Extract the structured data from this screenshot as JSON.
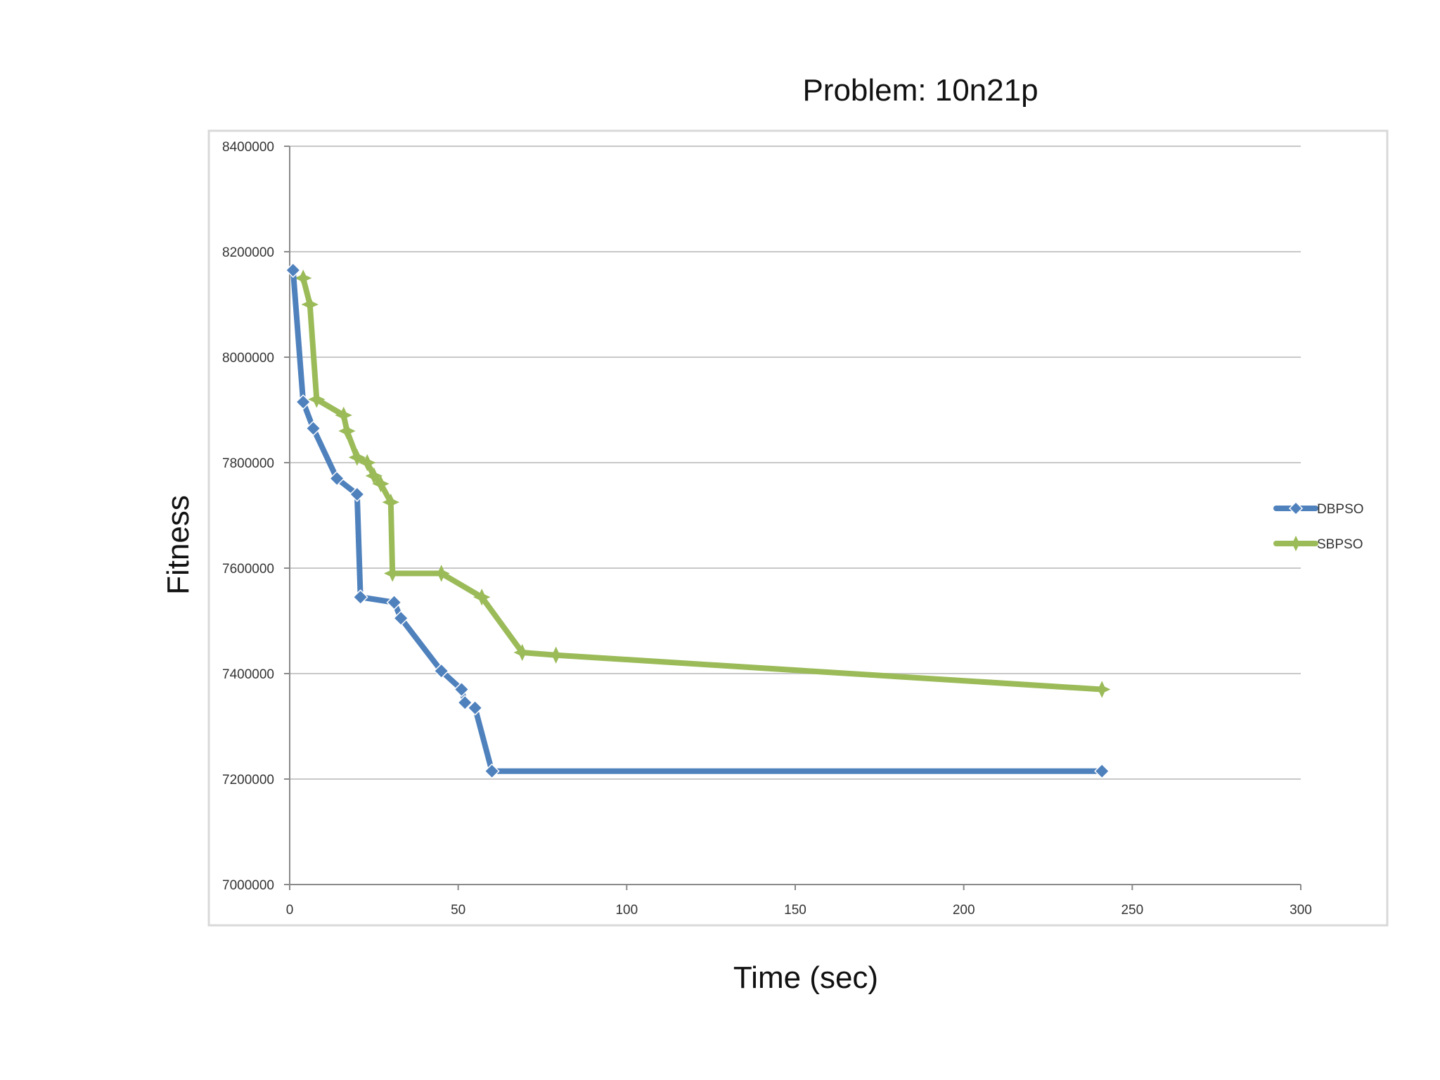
{
  "chart_data": {
    "type": "line",
    "title": "Problem: 10n21p",
    "xlabel": "Time (sec)",
    "ylabel": "Fitness",
    "xlim": [
      0,
      300
    ],
    "ylim": [
      7000000,
      8400000
    ],
    "xticks": [
      "0",
      "50",
      "100",
      "150",
      "200",
      "250",
      "300"
    ],
    "yticks": [
      "7000000",
      "7200000",
      "7400000",
      "7600000",
      "7800000",
      "8000000",
      "8200000",
      "8400000"
    ],
    "grid": true,
    "legend_position": "right",
    "series": [
      {
        "name": "DBPSO",
        "color": "#4f81bd",
        "marker": "diamond",
        "points": [
          [
            1,
            8165000
          ],
          [
            4,
            7915000
          ],
          [
            7,
            7865000
          ],
          [
            14,
            7770000
          ],
          [
            20,
            7740000
          ],
          [
            21,
            7545000
          ],
          [
            31,
            7535000
          ],
          [
            33,
            7505000
          ],
          [
            45,
            7405000
          ],
          [
            51,
            7370000
          ],
          [
            52,
            7345000
          ],
          [
            55,
            7335000
          ],
          [
            60,
            7215000
          ],
          [
            241,
            7215000
          ]
        ]
      },
      {
        "name": "SBPSO",
        "color": "#9bbb59",
        "marker": "star",
        "points": [
          [
            4,
            8150000
          ],
          [
            6,
            8100000
          ],
          [
            8,
            7920000
          ],
          [
            16,
            7890000
          ],
          [
            17,
            7860000
          ],
          [
            20,
            7810000
          ],
          [
            23,
            7800000
          ],
          [
            25,
            7775000
          ],
          [
            27,
            7760000
          ],
          [
            30,
            7725000
          ],
          [
            30.5,
            7590000
          ],
          [
            45,
            7590000
          ],
          [
            57,
            7545000
          ],
          [
            69,
            7440000
          ],
          [
            79,
            7435000
          ],
          [
            241,
            7370000
          ]
        ]
      }
    ]
  }
}
